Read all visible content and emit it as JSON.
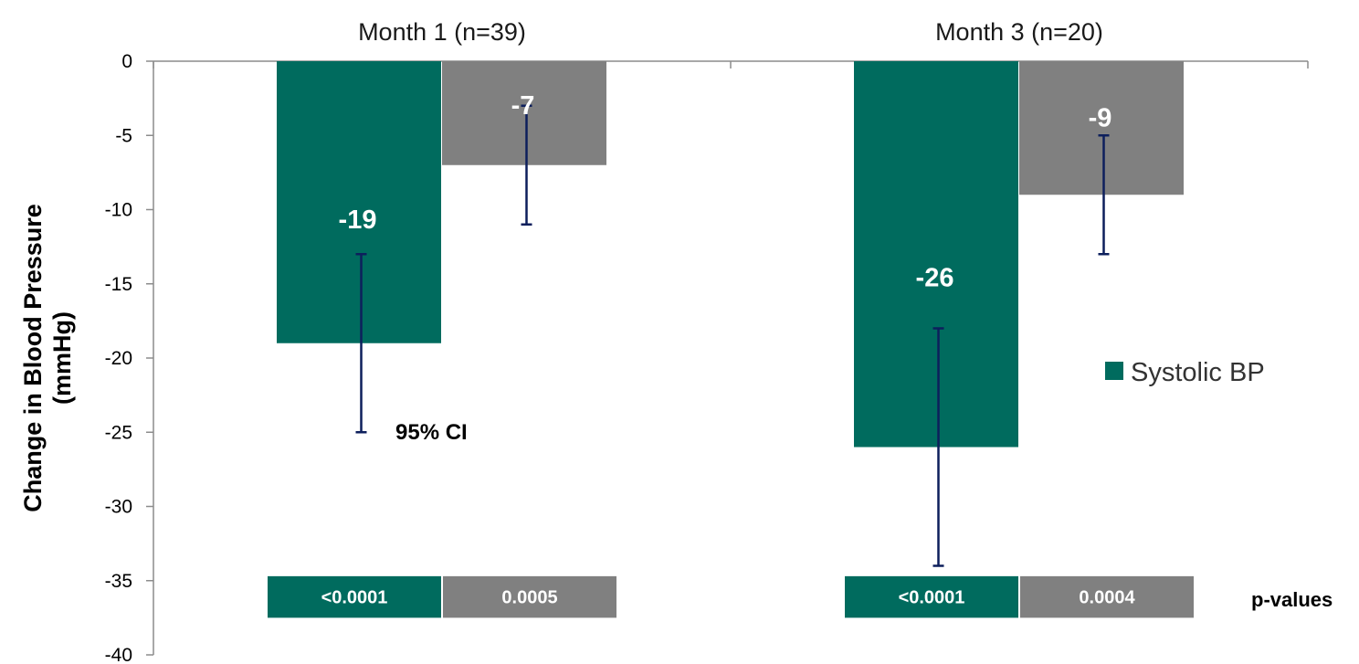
{
  "chart_data": {
    "type": "bar",
    "categories": [
      "Month 1 (n=39)",
      "Month 3 (n=20)"
    ],
    "ylabel_lines": [
      "Change in Blood Pressure",
      "(mmHg)"
    ],
    "ylim": [
      -40,
      0
    ],
    "yticks": [
      0,
      -5,
      -10,
      -15,
      -20,
      -25,
      -30,
      -35,
      -40
    ],
    "grid": false,
    "legend": {
      "position": "right",
      "entries": [
        {
          "series": 0,
          "label": "Systolic BP"
        }
      ]
    },
    "series": [
      {
        "name": "Systolic BP",
        "color": "#006b5e",
        "values": [
          -19,
          -26
        ],
        "labels": [
          "-19",
          "-26"
        ],
        "ci": [
          [
            -25,
            -13
          ],
          [
            -34,
            -18
          ]
        ],
        "pvalues": [
          "<0.0001",
          "<0.0001"
        ]
      },
      {
        "color": "#808080",
        "values": [
          -7,
          -9
        ],
        "labels": [
          "-7",
          "-9"
        ],
        "ci": [
          [
            -11,
            -3
          ],
          [
            -13,
            -5
          ]
        ],
        "pvalues": [
          "0.0005",
          "0.0004"
        ]
      }
    ],
    "errorbar_color": "#0d1f5c",
    "annotations": {
      "ci_label": "95% CI",
      "pvalues_label": "p-values"
    }
  }
}
